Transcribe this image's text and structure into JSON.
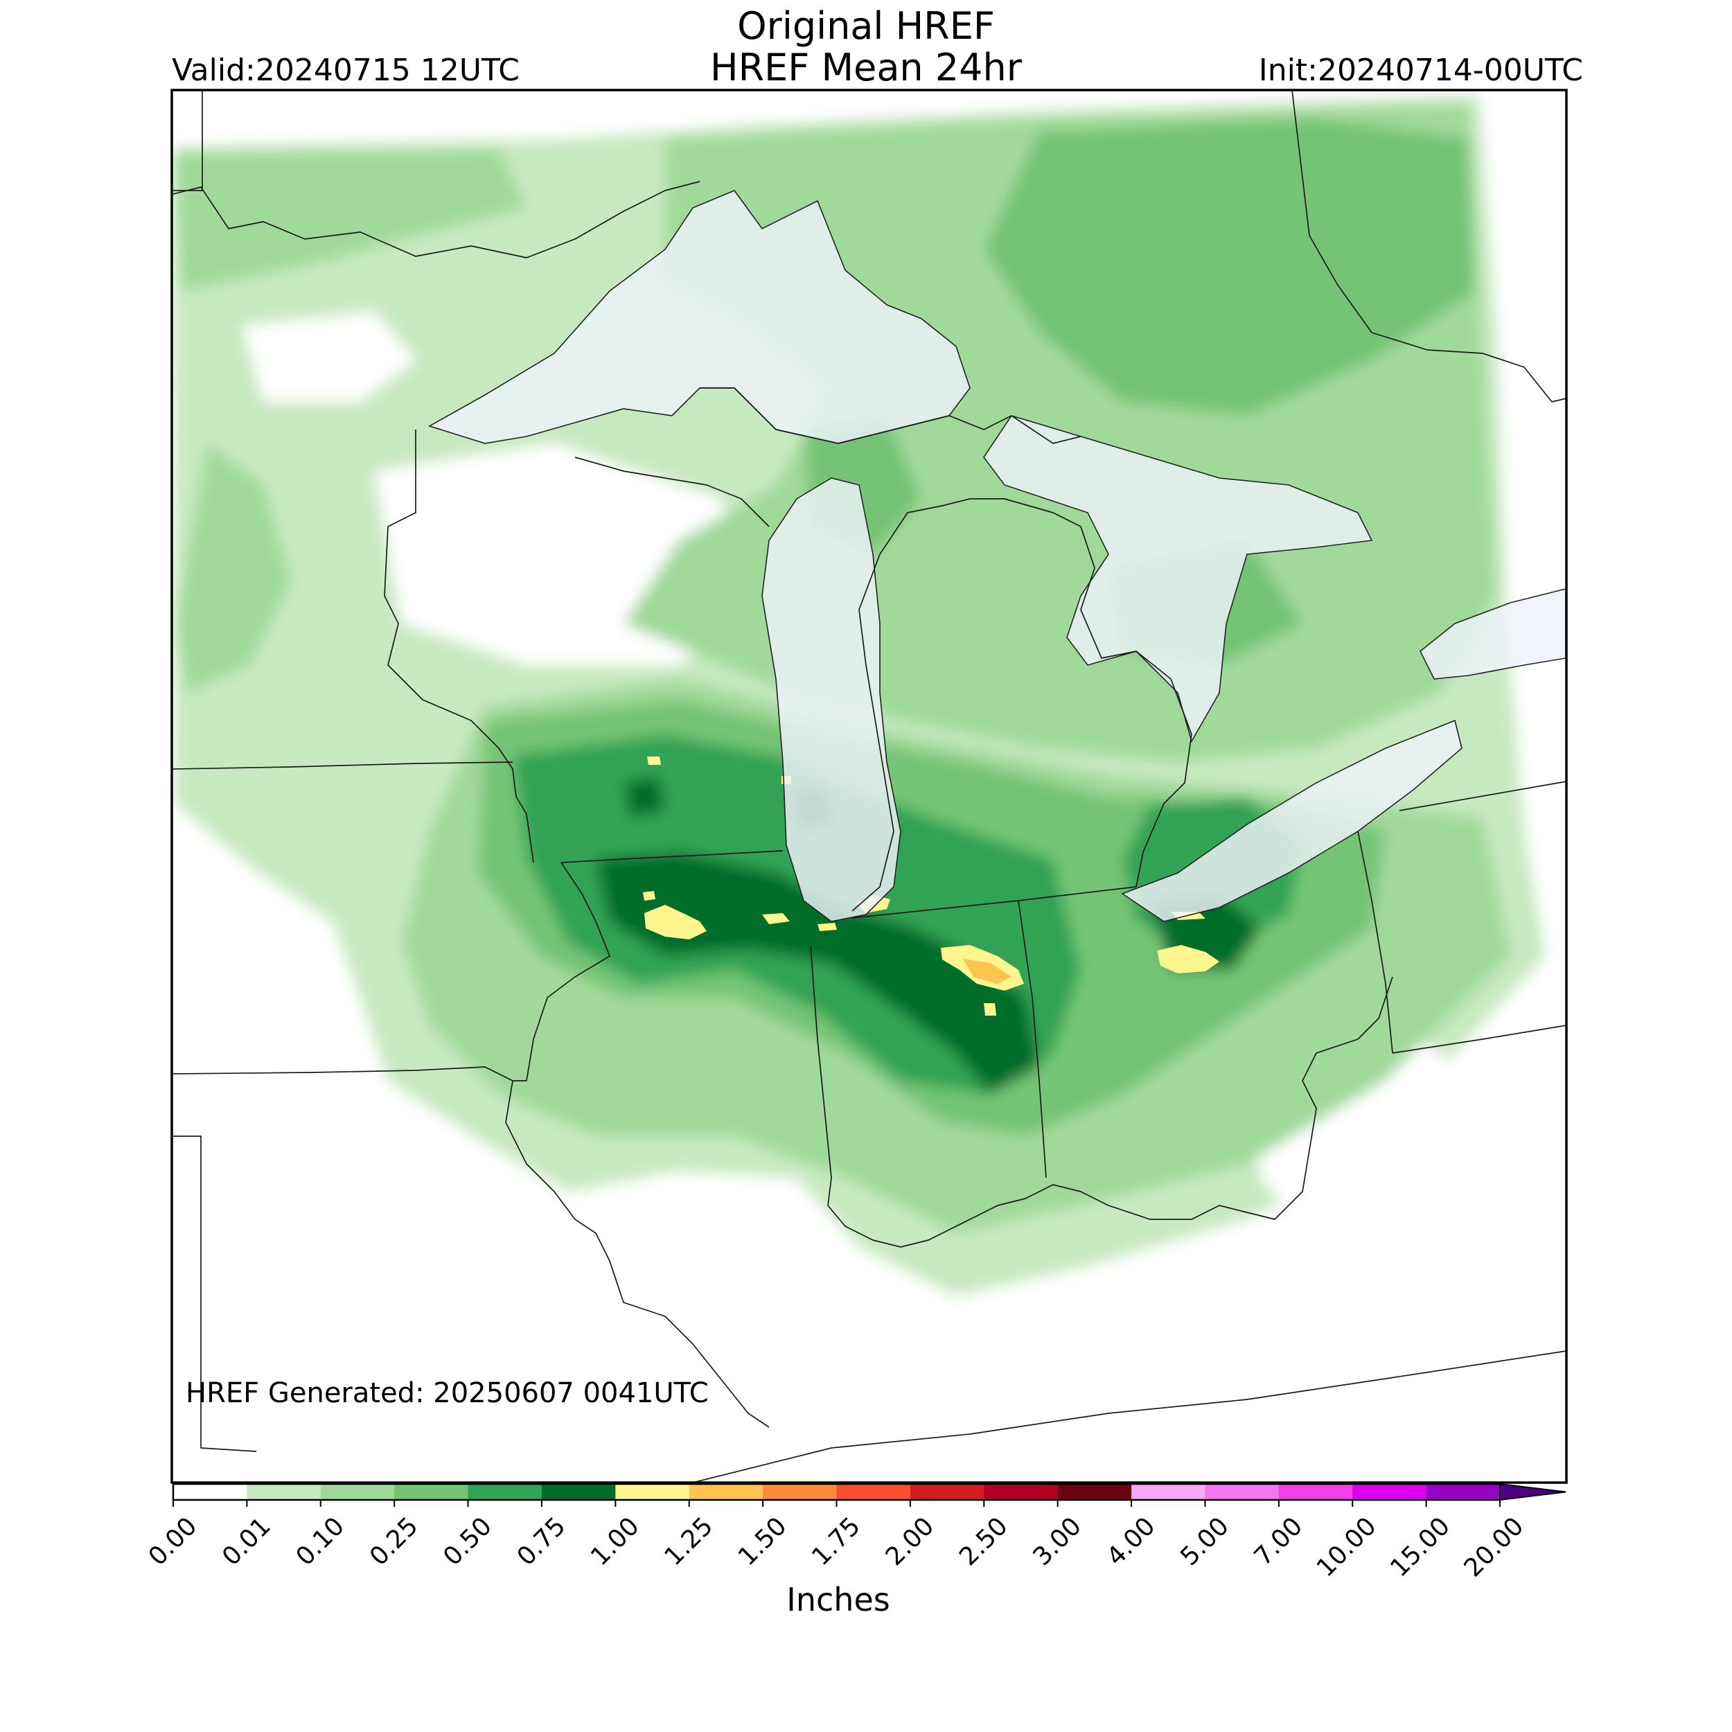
{
  "header": {
    "title_line1": "Original HREF",
    "title_line2": "HREF Mean 24hr",
    "valid": "Valid:20240715 12UTC",
    "init": "Init:20240714-00UTC"
  },
  "map": {
    "generated_note": "HREF Generated: 20250607 0041UTC",
    "region": "Great Lakes / Upper Midwest",
    "colors": {
      "water": "#eef3fa",
      "boundary": "#1a1a1a",
      "background": "#ffffff"
    }
  },
  "colorbar": {
    "units_label": "Inches",
    "levels": [
      "0.00",
      "0.01",
      "0.10",
      "0.25",
      "0.50",
      "0.75",
      "1.00",
      "1.25",
      "1.50",
      "1.75",
      "2.00",
      "2.50",
      "3.00",
      "4.00",
      "5.00",
      "7.00",
      "10.00",
      "15.00",
      "20.00"
    ],
    "colors": [
      "#ffffff",
      "#c7e9c0",
      "#a1d99b",
      "#74c476",
      "#31a354",
      "#006d2c",
      "#fff68f",
      "#ffc34f",
      "#fe8c3c",
      "#f84f2f",
      "#d31d22",
      "#b00026",
      "#6e0014",
      "#f8a9f6",
      "#f576f0",
      "#f33ee9",
      "#de00ec",
      "#9800c7"
    ],
    "extend_color": "#4b0082"
  }
}
